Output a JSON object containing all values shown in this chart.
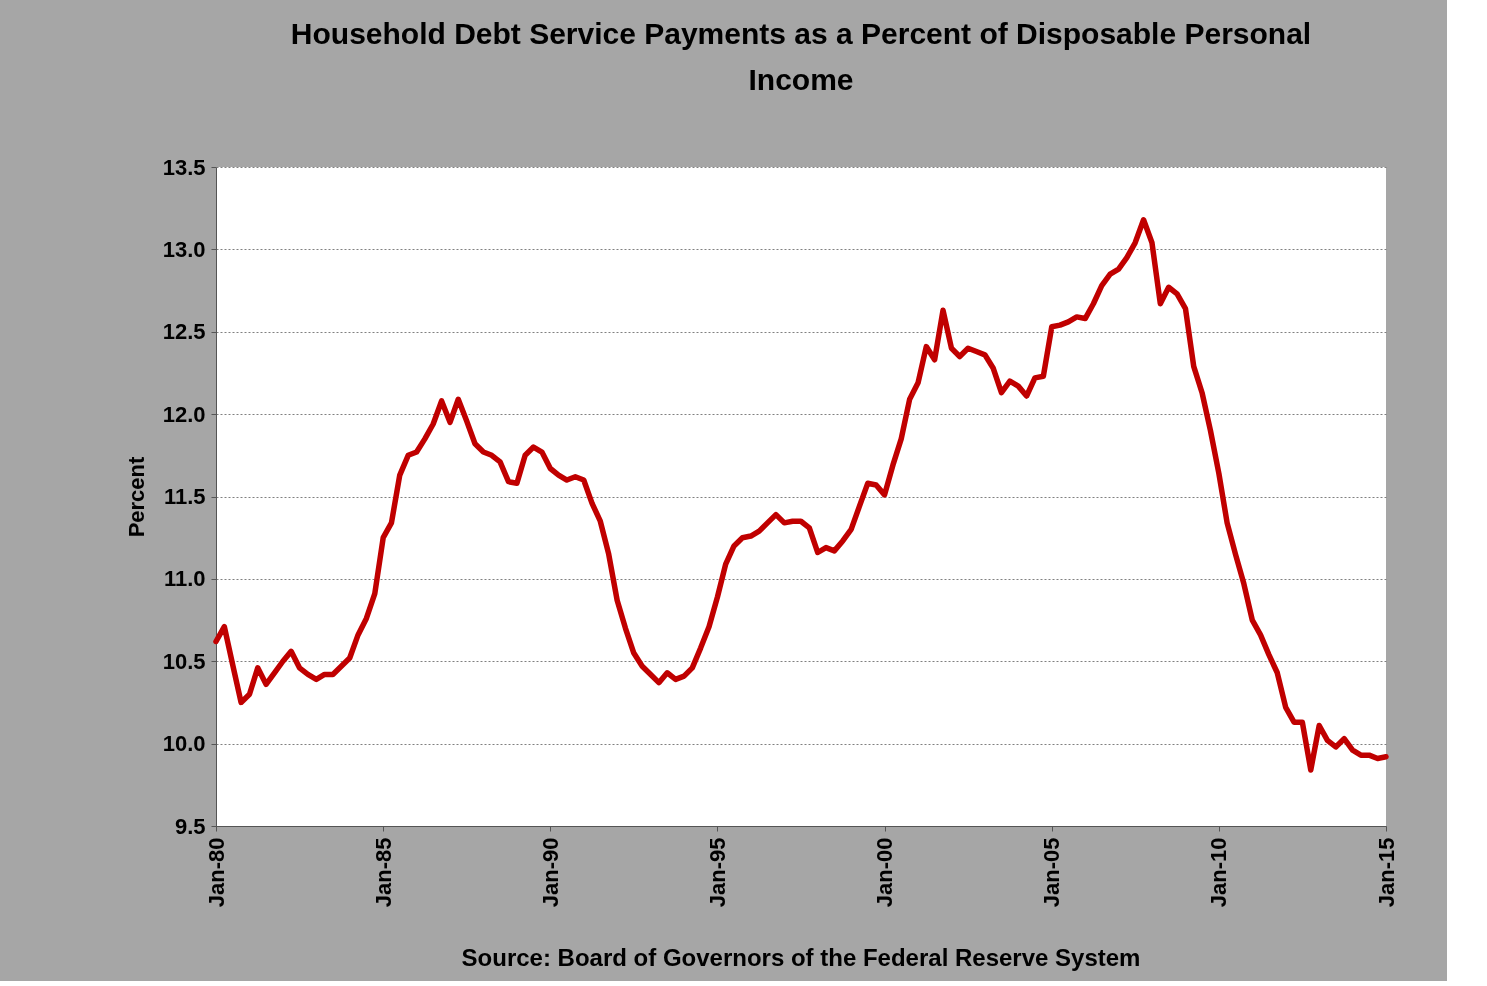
{
  "chart_data": {
    "type": "line",
    "title": "Household Debt Service Payments as a Percent of Disposable Personal Income",
    "ylabel": "Percent",
    "annotations": [
      "Source: Board of Governors of the Federal Reserve System"
    ],
    "x": [
      "1980-01",
      "1980-04",
      "1980-07",
      "1980-10",
      "1981-01",
      "1981-04",
      "1981-07",
      "1981-10",
      "1982-01",
      "1982-04",
      "1982-07",
      "1982-10",
      "1983-01",
      "1983-04",
      "1983-07",
      "1983-10",
      "1984-01",
      "1984-04",
      "1984-07",
      "1984-10",
      "1985-01",
      "1985-04",
      "1985-07",
      "1985-10",
      "1986-01",
      "1986-04",
      "1986-07",
      "1986-10",
      "1987-01",
      "1987-04",
      "1987-07",
      "1987-10",
      "1988-01",
      "1988-04",
      "1988-07",
      "1988-10",
      "1989-01",
      "1989-04",
      "1989-07",
      "1989-10",
      "1990-01",
      "1990-04",
      "1990-07",
      "1990-10",
      "1991-01",
      "1991-04",
      "1991-07",
      "1991-10",
      "1992-01",
      "1992-04",
      "1992-07",
      "1992-10",
      "1993-01",
      "1993-04",
      "1993-07",
      "1993-10",
      "1994-01",
      "1994-04",
      "1994-07",
      "1994-10",
      "1995-01",
      "1995-04",
      "1995-07",
      "1995-10",
      "1996-01",
      "1996-04",
      "1996-07",
      "1996-10",
      "1997-01",
      "1997-04",
      "1997-07",
      "1997-10",
      "1998-01",
      "1998-04",
      "1998-07",
      "1998-10",
      "1999-01",
      "1999-04",
      "1999-07",
      "1999-10",
      "2000-01",
      "2000-04",
      "2000-07",
      "2000-10",
      "2001-01",
      "2001-04",
      "2001-07",
      "2001-10",
      "2002-01",
      "2002-04",
      "2002-07",
      "2002-10",
      "2003-01",
      "2003-04",
      "2003-07",
      "2003-10",
      "2004-01",
      "2004-04",
      "2004-07",
      "2004-10",
      "2005-01",
      "2005-04",
      "2005-07",
      "2005-10",
      "2006-01",
      "2006-04",
      "2006-07",
      "2006-10",
      "2007-01",
      "2007-04",
      "2007-07",
      "2007-10",
      "2008-01",
      "2008-04",
      "2008-07",
      "2008-10",
      "2009-01",
      "2009-04",
      "2009-07",
      "2009-10",
      "2010-01",
      "2010-04",
      "2010-07",
      "2010-10",
      "2011-01",
      "2011-04",
      "2011-07",
      "2011-10",
      "2012-01",
      "2012-04",
      "2012-07",
      "2012-10",
      "2013-01",
      "2013-04",
      "2013-07",
      "2013-10",
      "2014-01",
      "2014-04",
      "2014-07",
      "2014-10",
      "2015-01"
    ],
    "series": [
      {
        "color": "#c00000",
        "values": [
          10.62,
          10.71,
          10.48,
          10.25,
          10.3,
          10.46,
          10.36,
          10.43,
          10.5,
          10.56,
          10.46,
          10.42,
          10.39,
          10.42,
          10.42,
          10.47,
          10.52,
          10.66,
          10.76,
          10.91,
          11.25,
          11.34,
          11.63,
          11.75,
          11.77,
          11.85,
          11.94,
          12.08,
          11.95,
          12.09,
          11.96,
          11.82,
          11.77,
          11.75,
          11.71,
          11.59,
          11.58,
          11.75,
          11.8,
          11.77,
          11.67,
          11.63,
          11.6,
          11.62,
          11.6,
          11.46,
          11.35,
          11.15,
          10.87,
          10.7,
          10.55,
          10.47,
          10.42,
          10.37,
          10.43,
          10.39,
          10.41,
          10.46,
          10.58,
          10.71,
          10.89,
          11.09,
          11.2,
          11.25,
          11.26,
          11.29,
          11.34,
          11.39,
          11.34,
          11.35,
          11.35,
          11.31,
          11.16,
          11.19,
          11.17,
          11.23,
          11.3,
          11.44,
          11.58,
          11.57,
          11.51,
          11.69,
          11.85,
          12.09,
          12.19,
          12.41,
          12.33,
          12.63,
          12.4,
          12.35,
          12.4,
          12.38,
          12.36,
          12.28,
          12.13,
          12.2,
          12.17,
          12.11,
          12.22,
          12.23,
          12.53,
          12.54,
          12.56,
          12.59,
          12.58,
          12.67,
          12.78,
          12.85,
          12.88,
          12.95,
          13.04,
          13.18,
          13.04,
          12.67,
          12.77,
          12.73,
          12.64,
          12.29,
          12.13,
          11.9,
          11.64,
          11.34,
          11.15,
          10.97,
          10.75,
          10.66,
          10.54,
          10.43,
          10.22,
          10.13,
          10.13,
          9.84,
          10.11,
          10.02,
          9.98,
          10.03,
          9.96,
          9.93,
          9.93,
          9.91,
          9.92
        ]
      }
    ],
    "xlim": [
      "1980-01",
      "2015-01"
    ],
    "xticks": [
      {
        "value": "1980-01",
        "label": "Jan-80"
      },
      {
        "value": "1985-01",
        "label": "Jan-85"
      },
      {
        "value": "1990-01",
        "label": "Jan-90"
      },
      {
        "value": "1995-01",
        "label": "Jan-95"
      },
      {
        "value": "2000-01",
        "label": "Jan-00"
      },
      {
        "value": "2005-01",
        "label": "Jan-05"
      },
      {
        "value": "2010-01",
        "label": "Jan-10"
      },
      {
        "value": "2015-01",
        "label": "Jan-15"
      }
    ],
    "ylim": [
      9.5,
      13.5
    ],
    "yticks": [
      {
        "value": 9.5,
        "label": "9.5"
      },
      {
        "value": 10,
        "label": "10.0"
      },
      {
        "value": 10.5,
        "label": "10.5"
      },
      {
        "value": 11,
        "label": "11.0"
      },
      {
        "value": 11.5,
        "label": "11.5"
      },
      {
        "value": 12,
        "label": "12.0"
      },
      {
        "value": 12.5,
        "label": "12.5"
      },
      {
        "value": 13,
        "label": "13.0"
      },
      {
        "value": 13.5,
        "label": "13.5"
      }
    ],
    "grid": "y",
    "marker": "none",
    "line_style": "solid"
  }
}
